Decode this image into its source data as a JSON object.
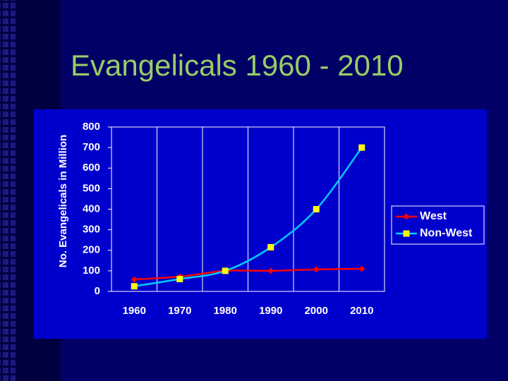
{
  "chart_data": {
    "type": "line",
    "title": "Evangelicals 1960 - 2010",
    "y_label": "No. Evangelicals in Million",
    "categories": [
      "1960",
      "1970",
      "1980",
      "1990",
      "2000",
      "2010"
    ],
    "series": [
      {
        "name": "West",
        "color": "#ff0000",
        "marker": "diamond",
        "values": [
          58,
          72,
          100,
          100,
          107,
          110
        ]
      },
      {
        "name": "Non-West",
        "color": "#00ccff",
        "marker_color": "#ffff00",
        "marker": "square",
        "values": [
          25,
          60,
          100,
          215,
          400,
          700
        ]
      }
    ],
    "ylim": [
      0,
      800
    ],
    "yticks": [
      0,
      100,
      200,
      300,
      400,
      500,
      600,
      700,
      800
    ],
    "grid": true,
    "legend": "right"
  }
}
